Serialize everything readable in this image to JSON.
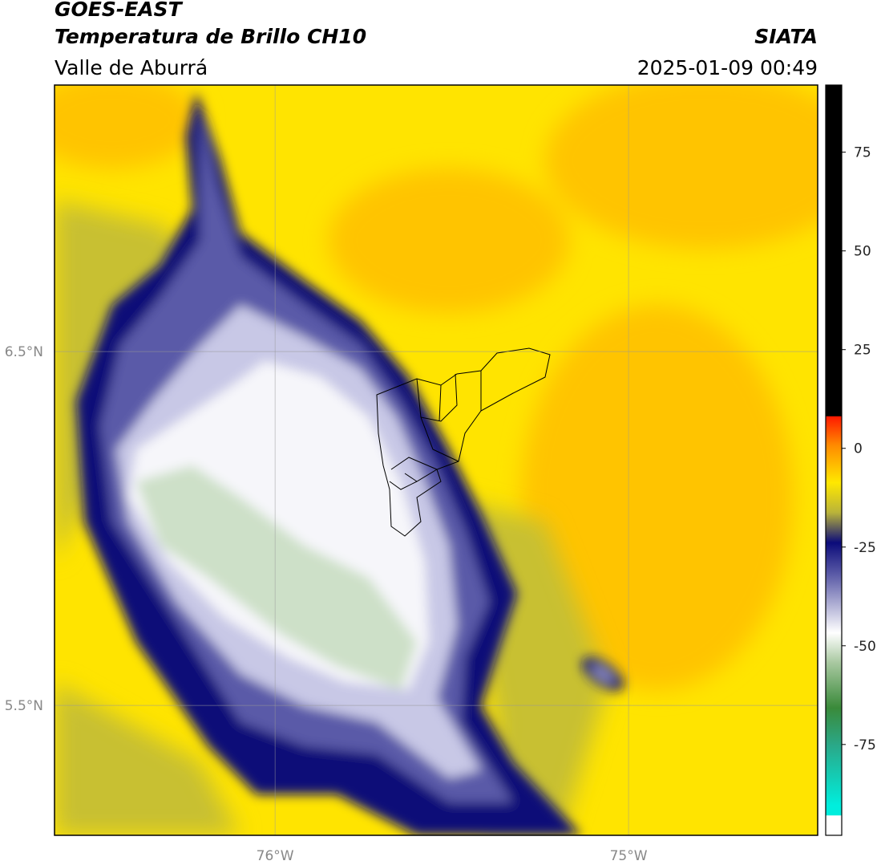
{
  "header": {
    "title": "GOES-EAST",
    "subtitle": "Temperatura de Brillo CH10",
    "region": "Valle de Aburrá",
    "source": "SIATA",
    "datetime": "2025-01-09 00:49"
  },
  "map": {
    "xlim": [
      -76.624,
      -74.465
    ],
    "ylim": [
      5.133,
      7.253
    ],
    "xticks": [
      {
        "value": -76,
        "label": "76°W"
      },
      {
        "value": -75,
        "label": "75°W"
      }
    ],
    "yticks": [
      {
        "value": 6.5,
        "label": "6.5°N"
      },
      {
        "value": 5.5,
        "label": "5.5°N"
      }
    ],
    "grid": true
  },
  "colorbar": {
    "lim": [
      -98,
      92
    ],
    "ticks": [
      75,
      50,
      25,
      0,
      -25,
      -50,
      -75
    ]
  }
}
